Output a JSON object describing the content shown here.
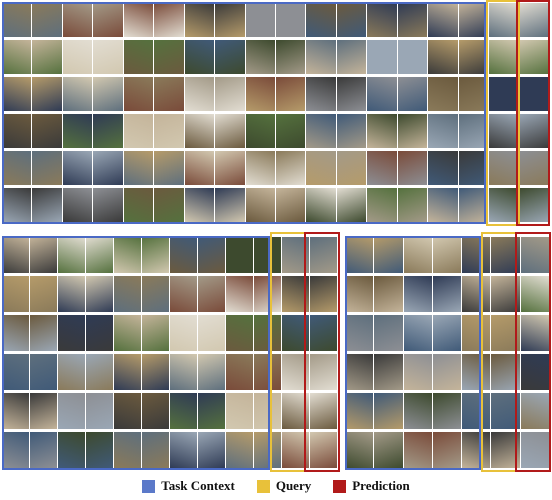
{
  "legend": {
    "items": [
      {
        "label": "Task Context",
        "color": "#5b79c9"
      },
      {
        "label": "Query",
        "color": "#e8c13a"
      },
      {
        "label": "Prediction",
        "color": "#b11a1a"
      }
    ]
  },
  "palette": {
    "task_frame": "#4a69c5",
    "query_frame": "#e8c13a",
    "prediction_frame": "#b11a1a",
    "tones": [
      "#6b5a3e",
      "#8a7a5a",
      "#3d4a2e",
      "#2f3b55",
      "#a39a88",
      "#5e6f7d",
      "#c4b49a",
      "#7a4b3a",
      "#9aa7b5",
      "#e2ddd2",
      "#3a3a3a",
      "#b59b6a",
      "#55713e",
      "#8d8f94",
      "#d2c8b0",
      "#405a78"
    ]
  },
  "panels": {
    "top": {
      "rows": 6,
      "task_cells": 16,
      "query_cells": 1,
      "prediction_cells": 1
    },
    "bottom_left": {
      "rows": 6,
      "task_cells": 10,
      "query_cells": 1,
      "prediction_cells": 1
    },
    "bottom_right": {
      "rows": 6,
      "task_cells": 5,
      "query_cells": 1,
      "prediction_cells": 1
    }
  }
}
